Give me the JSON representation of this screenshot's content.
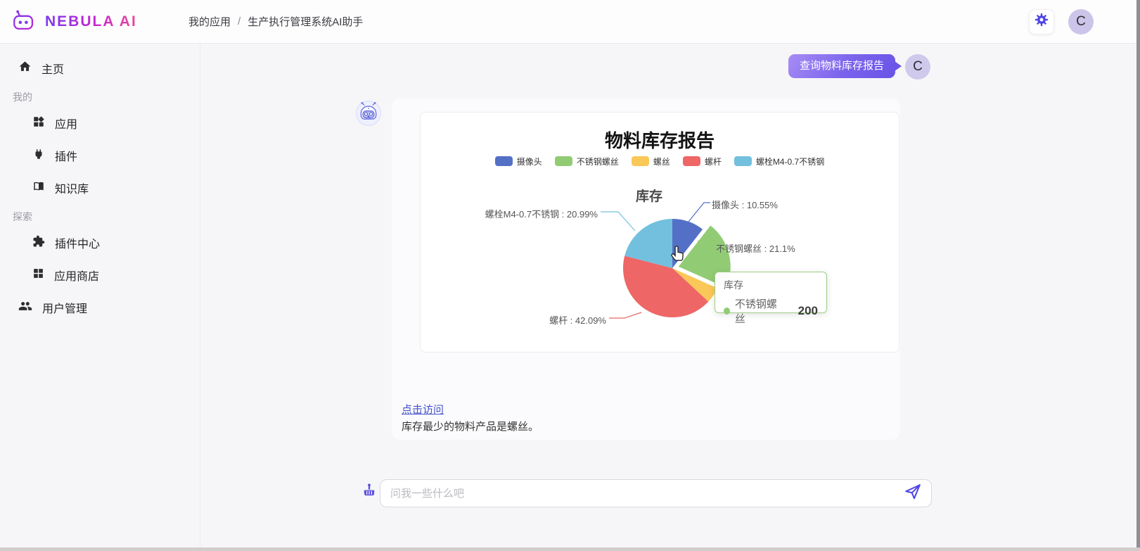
{
  "header": {
    "logo_text": "NEBULA AI",
    "breadcrumb": {
      "section": "我的应用",
      "separator": "/",
      "page": "生产执行管理系统AI助手"
    },
    "avatar_letter": "C"
  },
  "sidebar": {
    "items": [
      {
        "label": "主页",
        "type": "nav"
      },
      {
        "label": "我的",
        "type": "section"
      },
      {
        "label": "应用",
        "type": "nav"
      },
      {
        "label": "插件",
        "type": "nav"
      },
      {
        "label": "知识库",
        "type": "nav"
      },
      {
        "label": "探索",
        "type": "section"
      },
      {
        "label": "插件中心",
        "type": "nav"
      },
      {
        "label": "应用商店",
        "type": "nav"
      },
      {
        "label": "用户管理",
        "type": "nav"
      }
    ]
  },
  "chat": {
    "user_message": "查询物料库存报告",
    "user_avatar_letter": "C",
    "visit_link": "点击访问",
    "summary_text": "库存最少的物料产品是螺丝。"
  },
  "chart_data": {
    "type": "pie",
    "title": "物料库存报告",
    "subtitle": "库存",
    "series_name": "库存",
    "legend_position": "top",
    "legend": [
      "摄像头",
      "不锈钢螺丝",
      "螺丝",
      "螺杆",
      "螺栓M4-0.7不锈钢"
    ],
    "slices": [
      {
        "name": "摄像头",
        "pct": 10.55,
        "color": "#5470c6",
        "label": "摄像头 : 10.55%"
      },
      {
        "name": "不锈钢螺丝",
        "pct": 21.1,
        "color": "#91cc75",
        "label": "不锈钢螺丝 : 21.1%",
        "value": 200,
        "hovered": true
      },
      {
        "name": "螺丝",
        "pct": 5.27,
        "color": "#fac858",
        "label": null
      },
      {
        "name": "螺杆",
        "pct": 42.09,
        "color": "#ee6666",
        "label": "螺杆 : 42.09%"
      },
      {
        "name": "螺栓M4-0.7不锈钢",
        "pct": 20.99,
        "color": "#73c0de",
        "label": "螺栓M4-0.7不锈钢 : 20.99%"
      }
    ],
    "tooltip": {
      "title": "库存",
      "item": "不锈钢螺丝",
      "value": "200",
      "color": "#91cc75"
    }
  },
  "composer": {
    "placeholder": "问我一些什么吧"
  },
  "colors": {
    "accent": "#4f46e5",
    "bubble_gradient_start": "#a68df5",
    "bubble_gradient_end": "#6853e6"
  }
}
